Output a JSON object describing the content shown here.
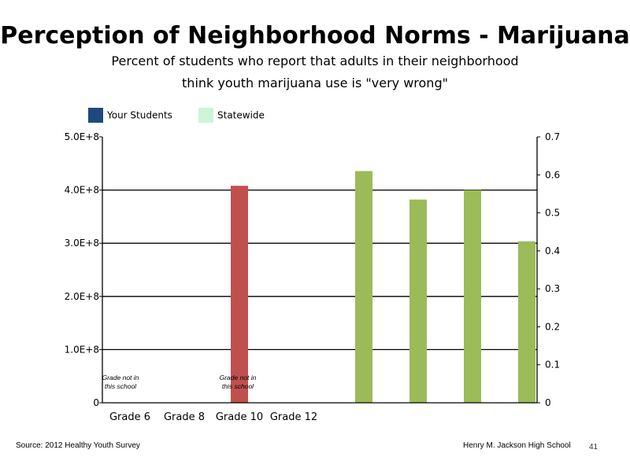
{
  "title": "Perception of Neighborhood Norms - Marijuana",
  "subtitle_line1": "Percent of students who report that adults in their neighborhood",
  "subtitle_line2": "think youth marijuana use is \"very wrong\"",
  "legend": [
    {
      "label": "Your Students",
      "color": "#1f497d"
    },
    {
      "label": "Statewide",
      "color": "#ccf5d8"
    }
  ],
  "footer": {
    "source": "Source: 2012 Healthy Youth Survey",
    "school": "Henry M. Jackson High School",
    "page": "41"
  },
  "chart_data": {
    "type": "bar",
    "left_axis": {
      "ticks": [
        "0",
        "1.0E+8",
        "2.0E+8",
        "3.0E+8",
        "4.0E+8",
        "5.0E+8"
      ],
      "range": [
        0,
        500000000
      ]
    },
    "right_axis": {
      "ticks": [
        "0",
        "0.1",
        "0.2",
        "0.3",
        "0.4",
        "0.5",
        "0.6",
        "0.7"
      ],
      "range": [
        0,
        0.7
      ]
    },
    "categories": [
      "Grade 6",
      "Grade 8",
      "Grade 10",
      "Grade 12"
    ],
    "annotations": [
      "Grade not in this school",
      "Grade not in this school"
    ],
    "gridlines": true,
    "bars": [
      {
        "axis": "left",
        "value": 408000000,
        "color": "#c0504d"
      },
      {
        "axis": "right",
        "value": 0.61,
        "color": "#9bbb59"
      },
      {
        "axis": "right",
        "value": 0.535,
        "color": "#9bbb59"
      },
      {
        "axis": "right",
        "value": 0.56,
        "color": "#9bbb59"
      },
      {
        "axis": "right",
        "value": 0.425,
        "color": "#9bbb59"
      }
    ]
  }
}
